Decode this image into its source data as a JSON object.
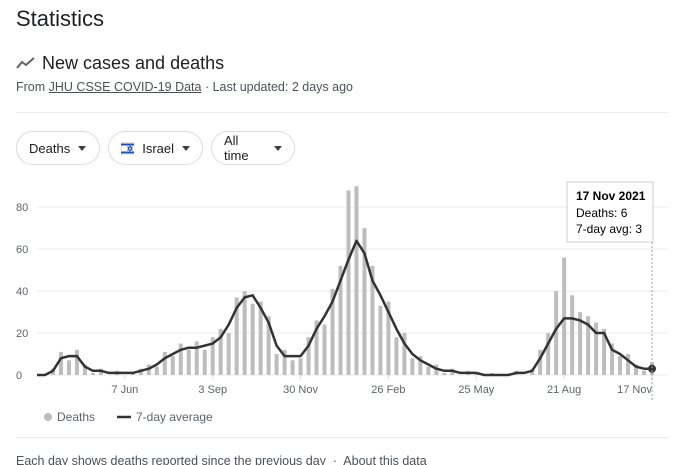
{
  "header": {
    "title": "Statistics",
    "subtitle": "New cases and deaths",
    "source_prefix": "From",
    "source_link": "JHU CSSE COVID-19 Data",
    "updated": "· Last updated: 2 days ago"
  },
  "filters": [
    "Deaths",
    "Israel",
    "All time"
  ],
  "chart_data": {
    "type": "bar",
    "x": [
      0,
      8,
      16,
      24,
      32,
      40,
      48,
      56,
      64,
      72,
      80,
      88,
      96,
      104,
      112,
      120,
      128,
      136,
      144,
      152,
      160,
      168,
      176,
      184,
      192,
      200,
      208,
      216,
      224,
      232,
      240,
      248,
      256,
      264,
      272,
      280,
      288,
      296,
      304,
      312,
      320,
      328,
      336,
      344,
      352,
      360,
      368,
      376,
      384,
      392,
      400,
      408,
      416,
      424,
      432,
      440,
      448,
      456,
      464,
      472,
      480,
      488,
      496,
      504,
      512,
      520,
      528,
      536,
      544,
      552,
      560,
      568,
      576,
      584,
      592,
      600,
      608,
      616
    ],
    "series": [
      {
        "name": "Deaths",
        "type": "bar",
        "color": "#bdbdbd",
        "values": [
          0,
          0,
          3,
          11,
          7,
          12,
          5,
          1,
          3,
          0,
          2,
          0,
          1,
          3,
          5,
          4,
          11,
          9,
          15,
          12,
          16,
          12,
          18,
          22,
          20,
          37,
          40,
          34,
          35,
          28,
          10,
          12,
          7,
          8,
          18,
          26,
          24,
          41,
          52,
          88,
          90,
          70,
          52,
          33,
          35,
          18,
          20,
          8,
          9,
          4,
          5,
          1,
          3,
          0,
          2,
          1,
          0,
          1,
          0,
          0,
          2,
          0,
          3,
          12,
          20,
          40,
          56,
          38,
          30,
          28,
          25,
          22,
          15,
          9,
          10,
          5,
          2,
          6
        ]
      },
      {
        "name": "7-day average",
        "type": "line",
        "color": "#333333",
        "values": [
          0,
          0,
          2,
          8,
          9,
          9,
          4,
          2,
          2,
          1,
          1,
          1,
          1,
          2,
          3,
          5,
          8,
          10,
          12,
          13,
          13,
          14,
          15,
          18,
          24,
          32,
          37,
          38,
          32,
          25,
          14,
          9,
          9,
          9,
          14,
          22,
          28,
          35,
          45,
          55,
          64,
          58,
          45,
          38,
          30,
          22,
          15,
          10,
          7,
          5,
          3,
          2,
          2,
          1,
          1,
          1,
          0,
          0,
          0,
          0,
          1,
          1,
          2,
          8,
          15,
          22,
          27,
          27,
          26,
          24,
          20,
          20,
          12,
          10,
          7,
          4,
          3,
          3
        ]
      }
    ],
    "xlim": [
      0,
      616
    ],
    "xticks": [
      {
        "value": 88,
        "label": "7 Jun"
      },
      {
        "value": 176,
        "label": "3 Sep"
      },
      {
        "value": 264,
        "label": "30 Nov"
      },
      {
        "value": 352,
        "label": "26 Feb"
      },
      {
        "value": 440,
        "label": "25 May"
      },
      {
        "value": 528,
        "label": "21 Aug"
      },
      {
        "value": 616,
        "label": "17 Nov"
      }
    ],
    "ylim": [
      0,
      92
    ],
    "yticks": [
      0,
      20,
      40,
      60,
      80
    ],
    "grid": true,
    "legend": "bottom-left"
  },
  "tooltip": {
    "date": "17 Nov 2021",
    "deaths": "Deaths: 6",
    "avg": "7-day avg: 3"
  },
  "footer": {
    "note": "Each day shows deaths reported since the previous day",
    "link": "About this data"
  }
}
